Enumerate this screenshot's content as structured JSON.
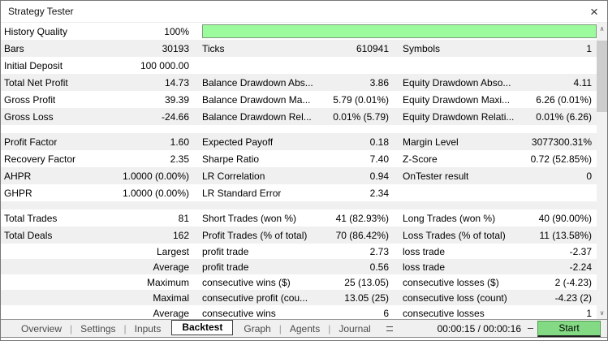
{
  "window": {
    "title": "Strategy Tester",
    "close_glyph": "×"
  },
  "colors": {
    "progress_green": "#9cfb9c",
    "progress_border": "#7e9c7e",
    "start_button_green": "#84da84",
    "row_stripe_gray": "#f0f0f0"
  },
  "scrollbar": {
    "up_glyph": "∧",
    "down_glyph": "∨"
  },
  "stats_rows": [
    {
      "c1": {
        "label": "History Quality",
        "value": "100%"
      },
      "progress_percent": 100
    },
    {
      "c1": {
        "label": "Bars",
        "value": "30193"
      },
      "c2": {
        "label": "Ticks",
        "value": "610941"
      },
      "c3": {
        "label": "Symbols",
        "value": "1"
      }
    },
    {
      "c1": {
        "label": "Initial Deposit",
        "value": "100 000.00"
      }
    },
    {
      "c1": {
        "label": "Total Net Profit",
        "value": "14.73"
      },
      "c2": {
        "label": "Balance Drawdown Abs...",
        "value": "3.86"
      },
      "c3": {
        "label": "Equity Drawdown Abso...",
        "value": "4.11"
      }
    },
    {
      "c1": {
        "label": "Gross Profit",
        "value": "39.39"
      },
      "c2": {
        "label": "Balance Drawdown Ma...",
        "value": "5.79 (0.01%)"
      },
      "c3": {
        "label": "Equity Drawdown Maxi...",
        "value": "6.26 (0.01%)"
      }
    },
    {
      "c1": {
        "label": "Gross Loss",
        "value": "-24.66"
      },
      "c2": {
        "label": "Balance Drawdown Rel...",
        "value": "0.01% (5.79)"
      },
      "c3": {
        "label": "Equity Drawdown Relati...",
        "value": "0.01% (6.26)"
      }
    },
    {
      "separator": true
    },
    {
      "c1": {
        "label": "Profit Factor",
        "value": "1.60"
      },
      "c2": {
        "label": "Expected Payoff",
        "value": "0.18"
      },
      "c3": {
        "label": "Margin Level",
        "value": "3077300.31%"
      }
    },
    {
      "c1": {
        "label": "Recovery Factor",
        "value": "2.35"
      },
      "c2": {
        "label": "Sharpe Ratio",
        "value": "7.40"
      },
      "c3": {
        "label": "Z-Score",
        "value": "0.72 (52.85%)"
      }
    },
    {
      "c1": {
        "label": "AHPR",
        "value": "1.0000 (0.00%)"
      },
      "c2": {
        "label": "LR Correlation",
        "value": "0.94"
      },
      "c3": {
        "label": "OnTester result",
        "value": "0"
      }
    },
    {
      "c1": {
        "label": "GHPR",
        "value": "1.0000 (0.00%)"
      },
      "c2": {
        "label": "LR Standard Error",
        "value": "2.34"
      }
    },
    {
      "separator": true
    },
    {
      "c1": {
        "label": "Total Trades",
        "value": "81"
      },
      "c2": {
        "label": "Short Trades (won %)",
        "value": "41 (82.93%)"
      },
      "c3": {
        "label": "Long Trades (won %)",
        "value": "40 (90.00%)"
      }
    },
    {
      "c1": {
        "label": "Total Deals",
        "value": "162"
      },
      "c2": {
        "label": "Profit Trades (% of total)",
        "value": "70 (86.42%)"
      },
      "c3": {
        "label": "Loss Trades (% of total)",
        "value": "11 (13.58%)"
      }
    },
    {
      "c1": {
        "value": "Largest"
      },
      "c2": {
        "label": "profit trade",
        "value": "2.73"
      },
      "c3": {
        "label": "loss trade",
        "value": "-2.37"
      }
    },
    {
      "c1": {
        "value": "Average"
      },
      "c2": {
        "label": "profit trade",
        "value": "0.56"
      },
      "c3": {
        "label": "loss trade",
        "value": "-2.24"
      }
    },
    {
      "c1": {
        "value": "Maximum"
      },
      "c2": {
        "label": "consecutive wins ($)",
        "value": "25 (13.05)"
      },
      "c3": {
        "label": "consecutive losses ($)",
        "value": "2 (-4.23)"
      }
    },
    {
      "c1": {
        "value": "Maximal"
      },
      "c2": {
        "label": "consecutive profit (cou...",
        "value": "13.05 (25)"
      },
      "c3": {
        "label": "consecutive loss (count)",
        "value": "-4.23 (2)"
      }
    },
    {
      "c1": {
        "value": "Average"
      },
      "c2": {
        "label": "consecutive wins",
        "value": "6"
      },
      "c3": {
        "label": "consecutive losses",
        "value": "1"
      }
    }
  ],
  "tab_divider": "|",
  "tabs": [
    {
      "label": "Overview",
      "active": false
    },
    {
      "label": "Settings",
      "active": false
    },
    {
      "label": "Inputs",
      "active": false
    },
    {
      "label": "Backtest",
      "active": true
    },
    {
      "label": "Graph",
      "active": false
    },
    {
      "label": "Agents",
      "active": false
    },
    {
      "label": "Journal",
      "active": false
    }
  ],
  "status": {
    "time": "00:00:15 / 00:00:16",
    "start_label": "Start"
  }
}
